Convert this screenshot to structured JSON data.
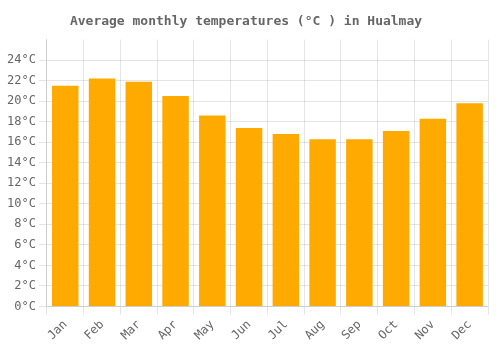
{
  "chart_data": {
    "type": "bar",
    "title": "Average monthly temperatures (°C ) in Hualmay",
    "categories": [
      "Jan",
      "Feb",
      "Mar",
      "Apr",
      "May",
      "Jun",
      "Jul",
      "Aug",
      "Sep",
      "Oct",
      "Nov",
      "Dec"
    ],
    "values": [
      21.5,
      22.2,
      21.9,
      20.5,
      18.6,
      17.4,
      16.8,
      16.3,
      16.3,
      17.1,
      18.3,
      19.8
    ],
    "color": "#FFAA00",
    "ylim": [
      0,
      26
    ],
    "yticks": [
      {
        "value": 0,
        "label": "0°C"
      },
      {
        "value": 2,
        "label": "2°C"
      },
      {
        "value": 4,
        "label": "4°C"
      },
      {
        "value": 6,
        "label": "6°C"
      },
      {
        "value": 8,
        "label": "8°C"
      },
      {
        "value": 10,
        "label": "10°C"
      },
      {
        "value": 12,
        "label": "12°C"
      },
      {
        "value": 14,
        "label": "14°C"
      },
      {
        "value": 16,
        "label": "16°C"
      },
      {
        "value": 18,
        "label": "18°C"
      },
      {
        "value": 20,
        "label": "20°C"
      },
      {
        "value": 22,
        "label": "22°C"
      },
      {
        "value": 24,
        "label": "24°C"
      }
    ],
    "grid": true
  }
}
